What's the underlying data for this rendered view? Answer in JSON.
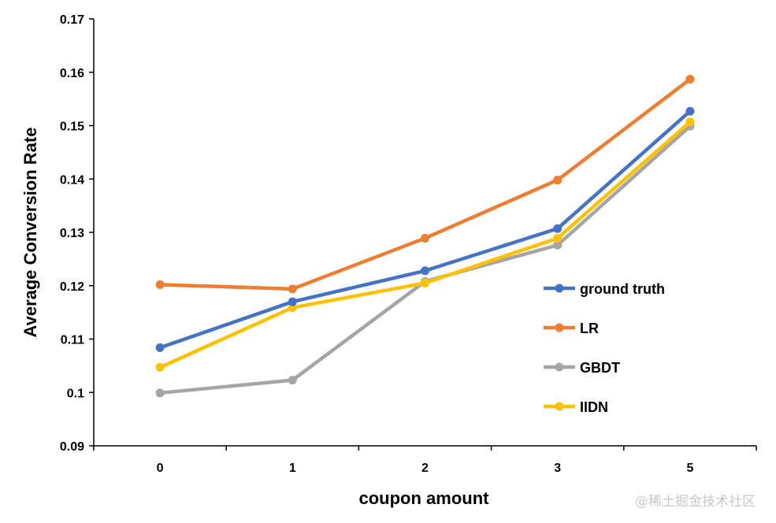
{
  "chart_data": {
    "type": "line",
    "categories": [
      "0",
      "1",
      "2",
      "3",
      "5"
    ],
    "xlabel": "coupon amount",
    "ylabel": "Average Conversion Rate",
    "ylim": [
      0.09,
      0.17
    ],
    "yticks": [
      "0.09",
      "0.1",
      "0.11",
      "0.12",
      "0.13",
      "0.14",
      "0.15",
      "0.16",
      "0.17"
    ],
    "grid": false,
    "legend_position": "right",
    "series": [
      {
        "name": "ground truth",
        "color": "#4472C4",
        "values": [
          0.1084,
          0.117,
          0.1228,
          0.1307,
          0.1527
        ]
      },
      {
        "name": "LR",
        "color": "#ED7D31",
        "values": [
          0.1202,
          0.1194,
          0.1289,
          0.1398,
          0.1587
        ]
      },
      {
        "name": "GBDT",
        "color": "#A5A5A5",
        "values": [
          0.0999,
          0.1023,
          0.1208,
          0.1276,
          0.1499
        ]
      },
      {
        "name": "IIDN",
        "color": "#FFC000",
        "values": [
          0.1047,
          0.1159,
          0.1205,
          0.1289,
          0.1507
        ]
      }
    ]
  },
  "watermark": "@稀土掘金技术社区"
}
